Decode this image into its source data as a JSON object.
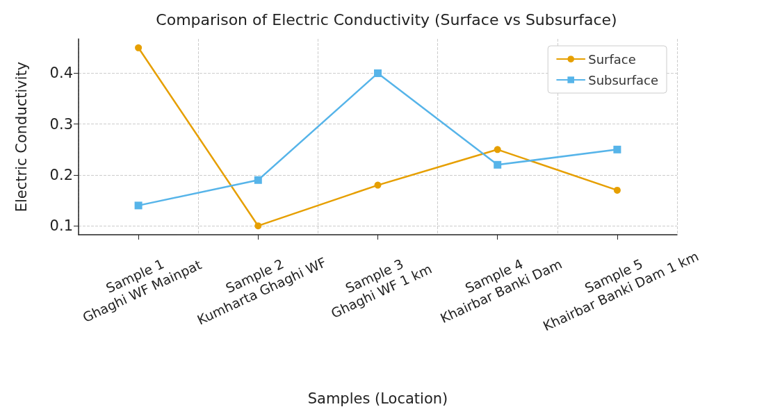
{
  "chart_data": {
    "type": "line",
    "title": "Comparison of Electric Conductivity (Surface vs Subsurface)",
    "xlabel": "Samples (Location)",
    "ylabel": "Electric Conductivity",
    "categories": [
      "Sample 1\nGhaghi WF Mainpat",
      "Sample 2\nKumharta Ghaghi WF",
      "Sample 3\nGhaghi WF 1 km",
      "Sample 4\nKhairbar Banki Dam",
      "Sample 5\nKhairbar Banki Dam 1 km"
    ],
    "series": [
      {
        "name": "Surface",
        "color": "#e69f00",
        "marker": "circle",
        "values": [
          0.45,
          0.1,
          0.18,
          0.25,
          0.17
        ]
      },
      {
        "name": "Subsurface",
        "color": "#56b4e9",
        "marker": "square",
        "values": [
          0.14,
          0.19,
          0.4,
          0.22,
          0.25
        ]
      }
    ],
    "ylim": [
      0.0825,
      0.4675
    ],
    "yticks": [
      0.1,
      0.2,
      0.3,
      0.4
    ],
    "grid": true,
    "legend": "top right",
    "line_style": "solid"
  }
}
